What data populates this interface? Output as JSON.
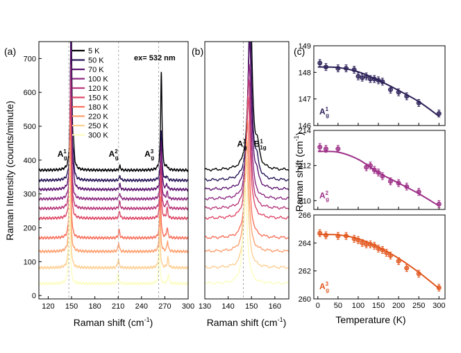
{
  "figure": {
    "panel_labels": [
      "(a)",
      "(b)",
      "(c)"
    ],
    "excitation_label": "ex= 532 nm",
    "colors": [
      "#000004",
      "#251255",
      "#5b126e",
      "#8c2981",
      "#b73779",
      "#de4968",
      "#f7705c",
      "#fe9f6d",
      "#fecf92",
      "#fcfdbf"
    ]
  },
  "chart_data": [
    {
      "id": "a",
      "type": "line",
      "title": "",
      "xlabel": "Raman shift (cm",
      "xlabel_sup": "-1",
      "xlabel_close": ")",
      "ylabel": "Raman Intensity (counts/minute)",
      "xlim": [
        108,
        300
      ],
      "ylim": [
        -10,
        750
      ],
      "xticks": [
        120,
        150,
        180,
        210,
        240,
        270,
        300
      ],
      "yticks": [
        0,
        100,
        200,
        300,
        400,
        500,
        600,
        700
      ],
      "legend_position": "top-center",
      "series": [
        {
          "name": "5 K",
          "offset": 370,
          "peaks": [
            [
              149.5,
              500
            ],
            [
              152.6,
              50
            ],
            [
              212.3,
              12
            ],
            [
              265.5,
              295
            ],
            [
              272.5,
              10
            ]
          ]
        },
        {
          "name": "50 K",
          "offset": 340,
          "peaks": [
            [
              149.3,
              460
            ],
            [
              152.4,
              40
            ],
            [
              212.3,
              13
            ],
            [
              265.4,
              150
            ],
            [
              272.5,
              12
            ]
          ]
        },
        {
          "name": "70 K",
          "offset": 313,
          "peaks": [
            [
              149.2,
              430
            ],
            [
              152.2,
              30
            ],
            [
              212.2,
              15
            ],
            [
              265.3,
              145
            ],
            [
              272.6,
              15
            ]
          ]
        },
        {
          "name": "100 K",
          "offset": 285,
          "peaks": [
            [
              149,
              400
            ],
            [
              211.9,
              18
            ],
            [
              265.1,
              140
            ],
            [
              273,
              20
            ]
          ]
        },
        {
          "name": "120 K",
          "offset": 257,
          "peaks": [
            [
              148.8,
              380
            ],
            [
              211.8,
              20
            ],
            [
              264.9,
              135
            ],
            [
              273,
              25
            ]
          ]
        },
        {
          "name": "150 K",
          "offset": 228,
          "peaks": [
            [
              148.6,
              360
            ],
            [
              211.6,
              22
            ],
            [
              264.6,
              130
            ],
            [
              273,
              30
            ]
          ]
        },
        {
          "name": "180 K",
          "offset": 170,
          "peaks": [
            [
              148.3,
              345
            ],
            [
              211.2,
              24
            ],
            [
              264.3,
              125
            ],
            [
              273,
              30
            ]
          ]
        },
        {
          "name": "220 K",
          "offset": 130,
          "peaks": [
            [
              148,
              330
            ],
            [
              210.6,
              25
            ],
            [
              263.8,
              120
            ],
            [
              273.5,
              30
            ]
          ]
        },
        {
          "name": "250 K",
          "offset": 82,
          "peaks": [
            [
              147.8,
              320
            ],
            [
              210.2,
              26
            ],
            [
              263.4,
              115
            ],
            [
              274,
              30
            ]
          ]
        },
        {
          "name": "300 K",
          "offset": 35,
          "peaks": [
            [
              147.3,
              300
            ],
            [
              209.8,
              28
            ],
            [
              262.8,
              110
            ],
            [
              274.5,
              30
            ]
          ]
        }
      ],
      "annotations": [
        {
          "text": "A",
          "sub": "g",
          "sup": "1",
          "x": 139,
          "y": 410
        },
        {
          "text": "A",
          "sub": "g",
          "sup": "2",
          "x": 205,
          "y": 410
        },
        {
          "text": "A",
          "sub": "g",
          "sup": "3",
          "x": 251,
          "y": 410
        }
      ],
      "reference_lines_x": [
        146.5,
        210.5,
        262
      ]
    },
    {
      "id": "b",
      "type": "line",
      "title": "",
      "xlabel": "Raman shift (cm",
      "xlabel_sup": "-1",
      "xlabel_close": ")",
      "ylabel": "",
      "xlim": [
        130,
        166
      ],
      "ylim": [
        -10,
        750
      ],
      "xticks": [
        130,
        140,
        150,
        160
      ],
      "series_source": "a",
      "annotations": [
        {
          "text": "A",
          "sub": "g",
          "sup": "1",
          "x": 146.2,
          "y": 440
        },
        {
          "text": "B",
          "sub": "1g",
          "sup": "1",
          "x": 153.4,
          "y": 440
        }
      ],
      "reference_lines_x": [
        146.5
      ]
    },
    {
      "id": "c",
      "type": "scatter",
      "xlabel": "Temperature (K)",
      "ylabel": "Raman shift (cm",
      "ylabel_sup": "-1",
      "ylabel_close": ")",
      "xlim": [
        -10,
        315
      ],
      "xticks": [
        0,
        50,
        100,
        150,
        200,
        250,
        300
      ],
      "subplots": [
        {
          "label": "A",
          "label_sub": "g",
          "label_sup": "1",
          "color": "#2b1f57",
          "ylim": [
            146,
            149
          ],
          "yticks": [
            146,
            147,
            148,
            149
          ],
          "x": [
            5,
            20,
            50,
            70,
            90,
            100,
            110,
            120,
            130,
            140,
            150,
            160,
            180,
            200,
            220,
            250,
            300
          ],
          "y": [
            148.35,
            148.2,
            148.15,
            148.15,
            148.1,
            147.85,
            147.8,
            147.85,
            147.75,
            147.75,
            147.7,
            147.65,
            147.35,
            147.25,
            147.1,
            146.85,
            146.45
          ],
          "fit": [
            [
              0,
              148.2
            ],
            [
              50,
              148.18
            ],
            [
              100,
              148.02
            ],
            [
              150,
              147.7
            ],
            [
              200,
              147.32
            ],
            [
              250,
              146.9
            ],
            [
              300,
              146.35
            ]
          ]
        },
        {
          "label": "A",
          "label_sub": "g",
          "label_sup": "2",
          "color": "#9c2e86",
          "ylim": [
            209.5,
            214
          ],
          "yticks": [
            210,
            212,
            214
          ],
          "x": [
            5,
            20,
            50,
            120,
            130,
            140,
            150,
            160,
            180,
            200,
            220,
            250,
            300
          ],
          "y": [
            213.05,
            212.95,
            212.95,
            211.9,
            212.0,
            211.75,
            211.6,
            211.4,
            211.1,
            211.0,
            210.8,
            210.5,
            209.8
          ],
          "fit": [
            [
              0,
              212.8
            ],
            [
              50,
              212.76
            ],
            [
              100,
              212.35
            ],
            [
              150,
              211.6
            ],
            [
              200,
              211.0
            ],
            [
              250,
              210.4
            ],
            [
              300,
              209.7
            ]
          ]
        },
        {
          "label": "A",
          "label_sub": "g",
          "label_sup": "3",
          "color": "#e2561d",
          "ylim": [
            260,
            266
          ],
          "yticks": [
            260,
            262,
            264,
            266
          ],
          "x": [
            5,
            20,
            50,
            70,
            90,
            100,
            110,
            120,
            130,
            140,
            150,
            160,
            170,
            180,
            200,
            220,
            250,
            300
          ],
          "y": [
            264.7,
            264.55,
            264.5,
            264.5,
            264.3,
            264.2,
            264.0,
            263.9,
            263.9,
            263.8,
            263.6,
            263.5,
            263.3,
            263.1,
            262.7,
            262.2,
            261.8,
            260.8
          ],
          "fit": [
            [
              0,
              264.6
            ],
            [
              50,
              264.58
            ],
            [
              100,
              264.3
            ],
            [
              150,
              263.7
            ],
            [
              200,
              262.9
            ],
            [
              250,
              261.9
            ],
            [
              300,
              260.75
            ]
          ]
        }
      ]
    }
  ]
}
